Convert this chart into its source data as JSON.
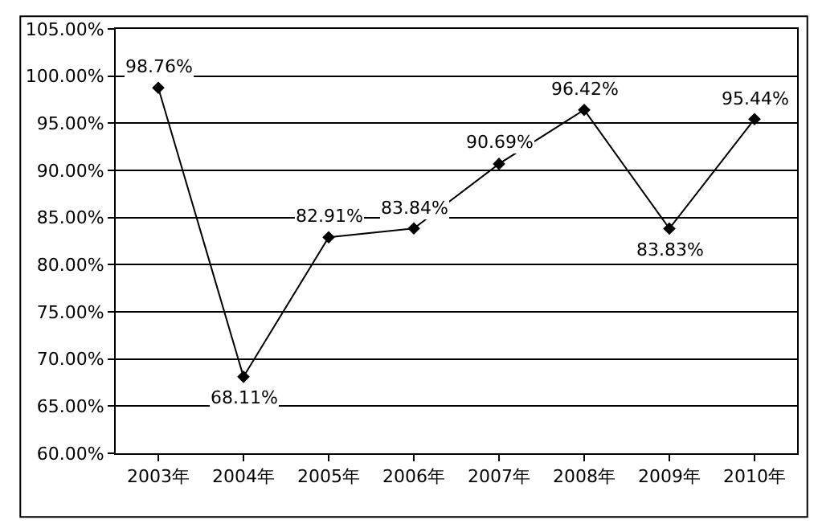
{
  "chart_data": {
    "type": "line",
    "categories": [
      "2003年",
      "2004年",
      "2005年",
      "2006年",
      "2007年",
      "2008年",
      "2009年",
      "2010年"
    ],
    "series": [
      {
        "color": "#000000",
        "values": [
          98.76,
          68.11,
          82.91,
          83.84,
          90.69,
          96.42,
          83.83,
          95.44
        ],
        "value_labels": [
          "98.76%",
          "68.11%",
          "82.91%",
          "83.84%",
          "90.69%",
          "96.42%",
          "83.83%",
          "95.44%"
        ]
      }
    ],
    "ylim": [
      60,
      105
    ],
    "yticks": [
      {
        "value": 60,
        "label": "60.00%"
      },
      {
        "value": 65,
        "label": "65.00%"
      },
      {
        "value": 70,
        "label": "70.00%"
      },
      {
        "value": 75,
        "label": "75.00%"
      },
      {
        "value": 80,
        "label": "80.00%"
      },
      {
        "value": 85,
        "label": "85.00%"
      },
      {
        "value": 90,
        "label": "90.00%"
      },
      {
        "value": 95,
        "label": "95.00%"
      },
      {
        "value": 100,
        "label": "100.00%"
      },
      {
        "value": 105,
        "label": "105.00%"
      }
    ],
    "grid": "y",
    "legend": false,
    "marker": "diamond",
    "line_style": "solid"
  }
}
